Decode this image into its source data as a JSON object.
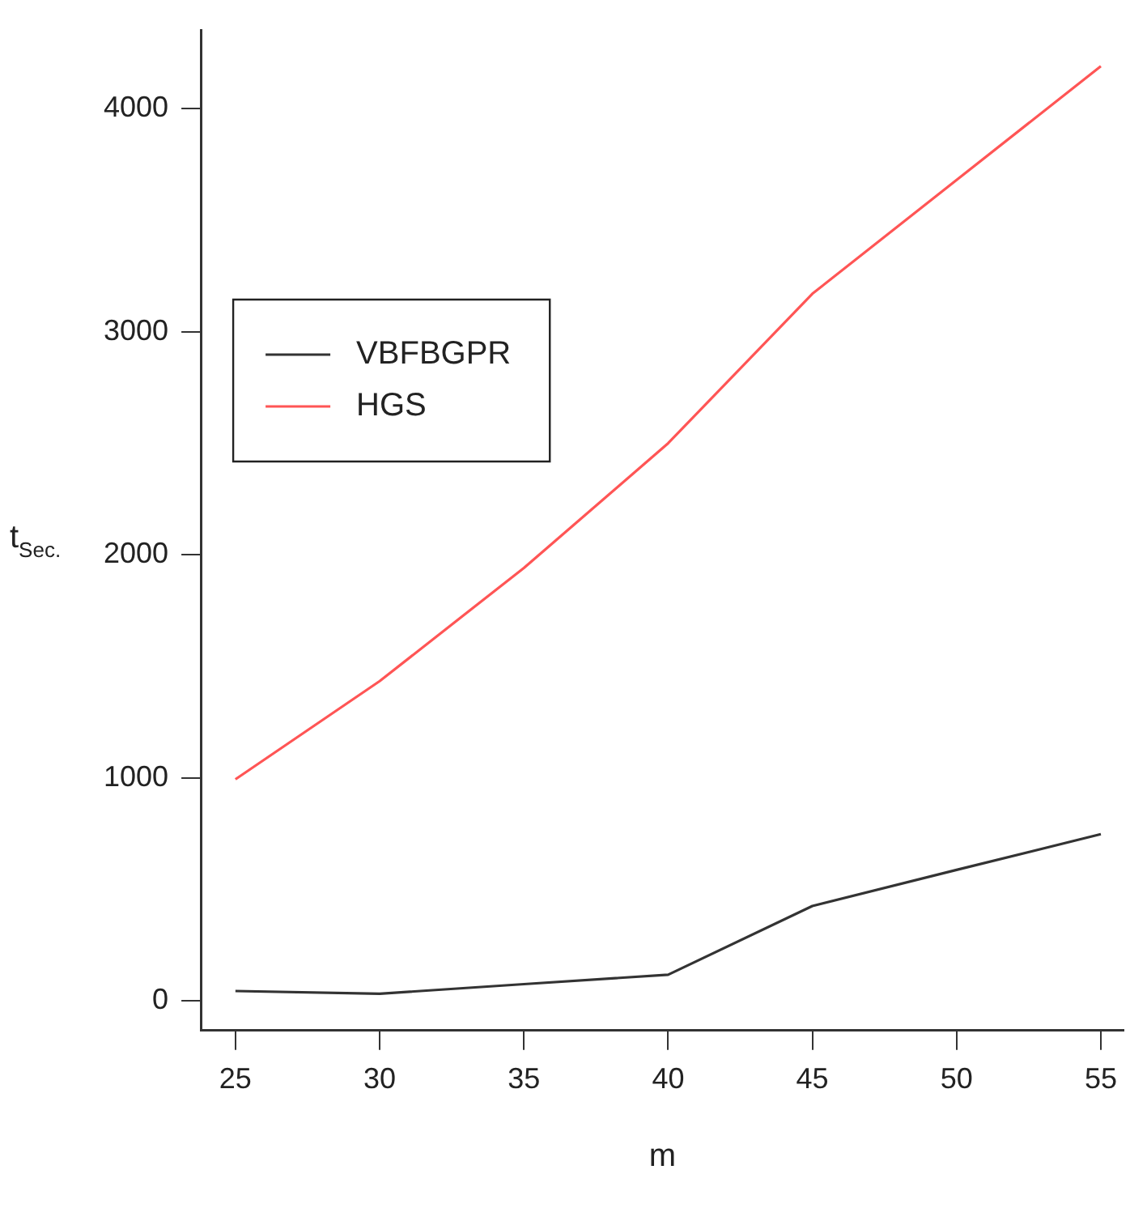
{
  "chart_data": {
    "type": "line",
    "xlabel": "m",
    "ylabel": "t$_{Sec.}$",
    "x": [
      25,
      30,
      35,
      40,
      45,
      50,
      55
    ],
    "series": [
      {
        "name": "VBFBGPR",
        "color": "#333333",
        "values": [
          45,
          33,
          76,
          118,
          426,
          588,
          748
        ]
      },
      {
        "name": "HGS",
        "color": "#ff5555",
        "values": [
          994,
          1434,
          1941,
          2500,
          3170,
          3680,
          4190
        ]
      }
    ],
    "xlim": [
      23.8,
      55.8
    ],
    "xticks": [
      25,
      30,
      35,
      40,
      45,
      50,
      55
    ],
    "ylim": [
      -132,
      4350
    ],
    "yticks": [
      0,
      1000,
      2000,
      3000,
      4000
    ],
    "grid": false,
    "legend": "left",
    "marker": "none",
    "line_style": "solid"
  }
}
